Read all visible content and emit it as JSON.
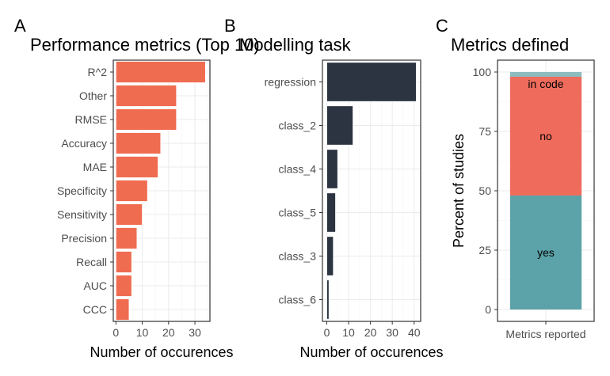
{
  "chart_data": [
    {
      "type": "bar",
      "orientation": "horizontal",
      "panel_letter": "A",
      "title": "Performance metrics (Top 10)",
      "xlabel": "Number of occurences",
      "ylabel": "",
      "categories": [
        "R^2",
        "Other",
        "RMSE",
        "Accuracy",
        "MAE",
        "Specificity",
        "Sensitivity",
        "Precision",
        "Recall",
        "AUC",
        "CCC"
      ],
      "values": [
        34,
        23,
        23,
        17,
        16,
        12,
        10,
        8,
        6,
        6,
        5
      ],
      "xlim": [
        -1,
        35.7
      ],
      "xticks": [
        0,
        10,
        20,
        30
      ],
      "color": "#ef6c51",
      "grid": true
    },
    {
      "type": "bar",
      "orientation": "horizontal",
      "panel_letter": "B",
      "title": "Modelling task",
      "xlabel": "Number of occurences",
      "ylabel": "",
      "categories": [
        "regression",
        "class_2",
        "class_4",
        "class_5",
        "class_3",
        "class_6"
      ],
      "values": [
        41,
        12,
        5,
        4,
        3,
        1
      ],
      "xlim": [
        -2,
        43
      ],
      "xticks": [
        0,
        10,
        20,
        30,
        40
      ],
      "color": "#2c3442",
      "grid": true
    },
    {
      "type": "bar",
      "stacked": true,
      "panel_letter": "C",
      "title": "Metrics defined",
      "xlabel": "",
      "ylabel": "Percent of studies",
      "categories": [
        "Metrics reported"
      ],
      "series": [
        {
          "name": "yes",
          "values": [
            48
          ],
          "color": "#5ba3a8"
        },
        {
          "name": "no",
          "values": [
            50
          ],
          "color": "#ef6c5c"
        },
        {
          "name": "in code",
          "values": [
            2
          ],
          "color": "#8cbcbd"
        }
      ],
      "ylim": [
        -5,
        105
      ],
      "yticks": [
        0,
        25,
        50,
        75,
        100
      ],
      "grid": true
    }
  ]
}
